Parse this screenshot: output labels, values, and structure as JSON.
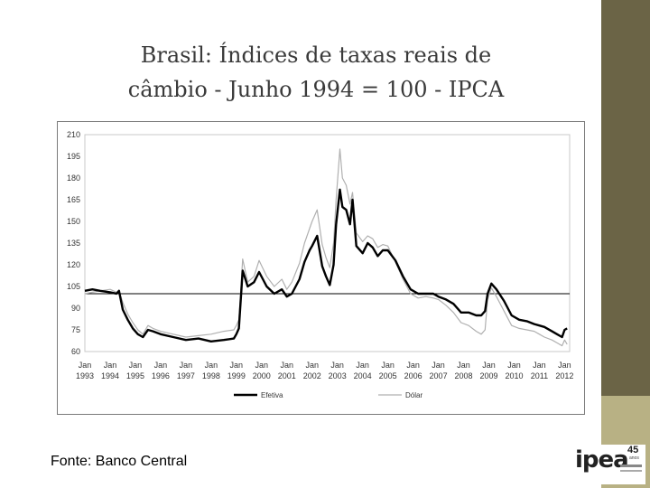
{
  "slide": {
    "title_line1": "Brasil: Índices de taxas reais de",
    "title_line2": "câmbio - Junho 1994 = 100 - IPCA",
    "source": "Fonte: Banco Central",
    "logo_text": "ipea",
    "logo_years": "45",
    "logo_anos": "anos",
    "colors": {
      "sidebar_dark": "#6b6446",
      "sidebar_light": "#b8b184"
    }
  },
  "chart_data": {
    "type": "line",
    "title": "",
    "xlabel": "",
    "ylabel": "",
    "ylim": [
      60,
      210
    ],
    "xlim": [
      1993.0,
      2012.2
    ],
    "yticks": [
      210,
      195,
      180,
      165,
      150,
      135,
      120,
      105,
      90,
      75,
      60
    ],
    "xticks": [
      {
        "month": "Jan",
        "year": "1993",
        "x": 1993
      },
      {
        "month": "Jan",
        "year": "1994",
        "x": 1994
      },
      {
        "month": "Jan",
        "year": "1995",
        "x": 1995
      },
      {
        "month": "Jan",
        "year": "1996",
        "x": 1996
      },
      {
        "month": "Jan",
        "year": "1997",
        "x": 1997
      },
      {
        "month": "Jan",
        "year": "1998",
        "x": 1998
      },
      {
        "month": "Jan",
        "year": "1999",
        "x": 1999
      },
      {
        "month": "Jan",
        "year": "2000",
        "x": 2000
      },
      {
        "month": "Jan",
        "year": "2001",
        "x": 2001
      },
      {
        "month": "Jan",
        "year": "2002",
        "x": 2002
      },
      {
        "month": "Jan",
        "year": "2003",
        "x": 2003
      },
      {
        "month": "Jan",
        "year": "2004",
        "x": 2004
      },
      {
        "month": "Jan",
        "year": "2005",
        "x": 2005
      },
      {
        "month": "Jan",
        "year": "2006",
        "x": 2006
      },
      {
        "month": "Jan",
        "year": "2007",
        "x": 2007
      },
      {
        "month": "Jan",
        "year": "2008",
        "x": 2008
      },
      {
        "month": "Jan",
        "year": "2009",
        "x": 2009
      },
      {
        "month": "Jan",
        "year": "2010",
        "x": 2010
      },
      {
        "month": "Jan",
        "year": "2011",
        "x": 2011
      },
      {
        "month": "Jan",
        "year": "2012",
        "x": 2012
      }
    ],
    "reference_line": 100,
    "grid": false,
    "legend_position": "bottom",
    "series": [
      {
        "name": "Efetiva",
        "color": "#000000",
        "x": [
          1993.0,
          1993.3,
          1993.6,
          1994.0,
          1994.25,
          1994.35,
          1994.5,
          1994.7,
          1994.9,
          1995.1,
          1995.3,
          1995.5,
          1995.7,
          1996.0,
          1996.5,
          1997.0,
          1997.5,
          1998.0,
          1998.5,
          1998.9,
          1999.0,
          1999.1,
          1999.25,
          1999.45,
          1999.7,
          1999.9,
          2000.2,
          2000.5,
          2000.8,
          2001.0,
          2001.2,
          2001.5,
          2001.7,
          2001.9,
          2002.0,
          2002.2,
          2002.4,
          2002.55,
          2002.7,
          2002.85,
          2002.95,
          2003.1,
          2003.2,
          2003.35,
          2003.5,
          2003.6,
          2003.75,
          2004.0,
          2004.2,
          2004.4,
          2004.6,
          2004.8,
          2005.0,
          2005.3,
          2005.6,
          2005.9,
          2006.2,
          2006.5,
          2006.8,
          2007.0,
          2007.3,
          2007.6,
          2007.9,
          2008.2,
          2008.5,
          2008.7,
          2008.85,
          2008.95,
          2009.1,
          2009.3,
          2009.6,
          2009.9,
          2010.2,
          2010.5,
          2010.8,
          2011.0,
          2011.2,
          2011.5,
          2011.7,
          2011.9,
          2012.0,
          2012.1
        ],
        "y": [
          102,
          103,
          102,
          101,
          100,
          102,
          89,
          82,
          76,
          72,
          70,
          75,
          74,
          72,
          70,
          68,
          69,
          67,
          68,
          69,
          72,
          76,
          116,
          105,
          108,
          115,
          105,
          100,
          103,
          98,
          100,
          110,
          122,
          130,
          133,
          140,
          119,
          112,
          106,
          120,
          148,
          172,
          160,
          158,
          148,
          165,
          133,
          128,
          135,
          132,
          126,
          130,
          130,
          123,
          112,
          103,
          100,
          100,
          100,
          98,
          96,
          93,
          87,
          87,
          85,
          85,
          88,
          100,
          107,
          103,
          95,
          85,
          82,
          81,
          79,
          78,
          77,
          74,
          72,
          70,
          75,
          76
        ]
      },
      {
        "name": "Dólar",
        "color": "#b0b0b0",
        "x": [
          1993.0,
          1993.3,
          1993.6,
          1994.0,
          1994.25,
          1994.35,
          1994.5,
          1994.7,
          1994.9,
          1995.1,
          1995.3,
          1995.5,
          1995.7,
          1996.0,
          1996.5,
          1997.0,
          1997.5,
          1998.0,
          1998.5,
          1998.9,
          1999.0,
          1999.1,
          1999.25,
          1999.45,
          1999.7,
          1999.9,
          2000.2,
          2000.5,
          2000.8,
          2001.0,
          2001.2,
          2001.5,
          2001.7,
          2001.9,
          2002.0,
          2002.2,
          2002.4,
          2002.55,
          2002.7,
          2002.85,
          2002.95,
          2003.1,
          2003.2,
          2003.35,
          2003.5,
          2003.6,
          2003.75,
          2004.0,
          2004.2,
          2004.4,
          2004.6,
          2004.8,
          2005.0,
          2005.3,
          2005.6,
          2005.9,
          2006.2,
          2006.5,
          2006.8,
          2007.0,
          2007.3,
          2007.6,
          2007.9,
          2008.2,
          2008.5,
          2008.7,
          2008.85,
          2008.95,
          2009.1,
          2009.3,
          2009.6,
          2009.9,
          2010.2,
          2010.5,
          2010.8,
          2011.0,
          2011.2,
          2011.5,
          2011.7,
          2011.9,
          2012.0,
          2012.1
        ],
        "y": [
          100,
          101,
          102,
          103,
          101,
          102,
          94,
          86,
          80,
          75,
          72,
          78,
          76,
          74,
          72,
          70,
          71,
          72,
          74,
          75,
          78,
          82,
          124,
          108,
          112,
          123,
          112,
          105,
          110,
          103,
          108,
          121,
          135,
          145,
          150,
          158,
          134,
          125,
          118,
          135,
          165,
          200,
          180,
          175,
          162,
          170,
          142,
          136,
          140,
          138,
          132,
          134,
          133,
          122,
          110,
          100,
          97,
          98,
          97,
          96,
          92,
          87,
          80,
          78,
          74,
          72,
          75,
          96,
          104,
          98,
          88,
          78,
          76,
          75,
          74,
          72,
          70,
          68,
          66,
          64,
          68,
          65
        ]
      }
    ]
  }
}
